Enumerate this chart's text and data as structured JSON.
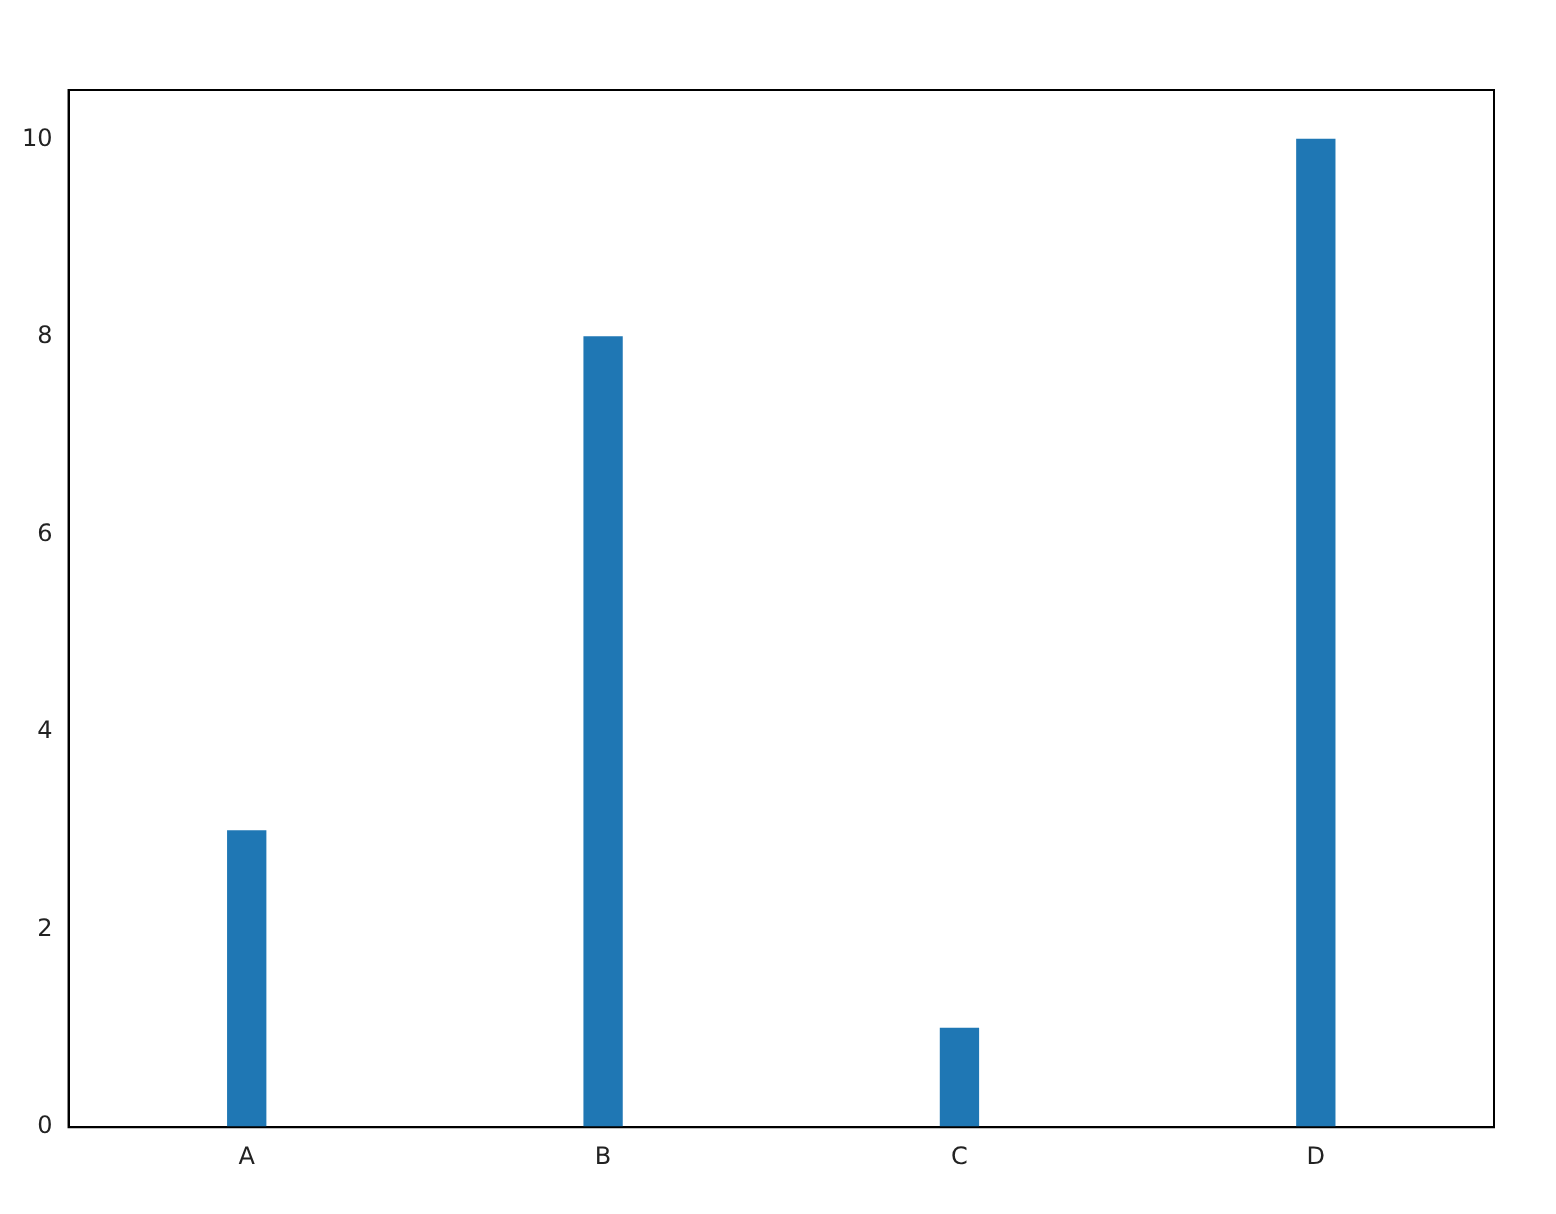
{
  "chart_data": {
    "type": "bar",
    "categories": [
      "A",
      "B",
      "C",
      "D"
    ],
    "values": [
      3,
      8,
      1,
      10
    ],
    "color": "#1f77b4",
    "ylim": [
      0,
      10.5
    ],
    "yticks": [
      0,
      2,
      4,
      6,
      8,
      10
    ],
    "grid": false,
    "legend": false
  }
}
